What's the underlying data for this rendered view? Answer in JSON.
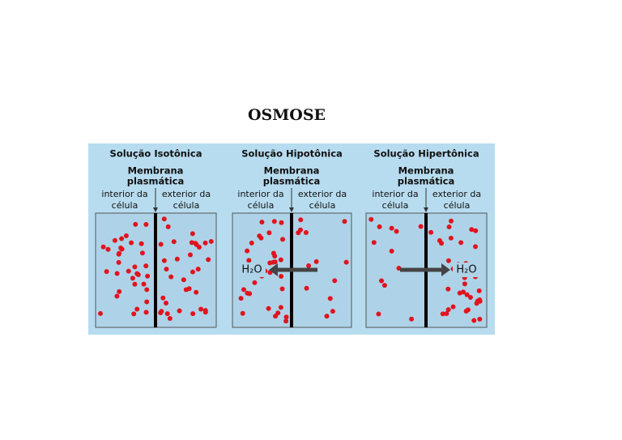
{
  "title": "OSMOSE",
  "panels": [
    {
      "title": "Solução Isotônica",
      "membrane": [
        "Membrana",
        "plasmática"
      ],
      "interior": [
        "interior da",
        "célula"
      ],
      "exterior": [
        "exterior da",
        "célula"
      ]
    },
    {
      "title": "Solução Hipotônica",
      "membrane": [
        "Membrana",
        "plasmática"
      ],
      "interior": [
        "interior da",
        "célula"
      ],
      "exterior": [
        "exterior da",
        "célula"
      ],
      "flow_label": "H₂O"
    },
    {
      "title": "Solução Hipertônica",
      "membrane": [
        "Membrana",
        "plasmática"
      ],
      "interior": [
        "interior da",
        "célula"
      ],
      "exterior": [
        "exterior da",
        "célula"
      ],
      "flow_label": "H₂O"
    }
  ]
}
